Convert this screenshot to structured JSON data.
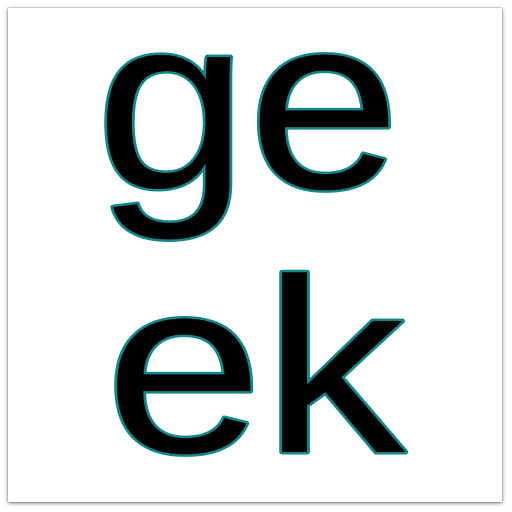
{
  "logo": {
    "line1": "ge",
    "line2": "ek",
    "fill_color": "#000000",
    "outline_color": "#13888a"
  }
}
